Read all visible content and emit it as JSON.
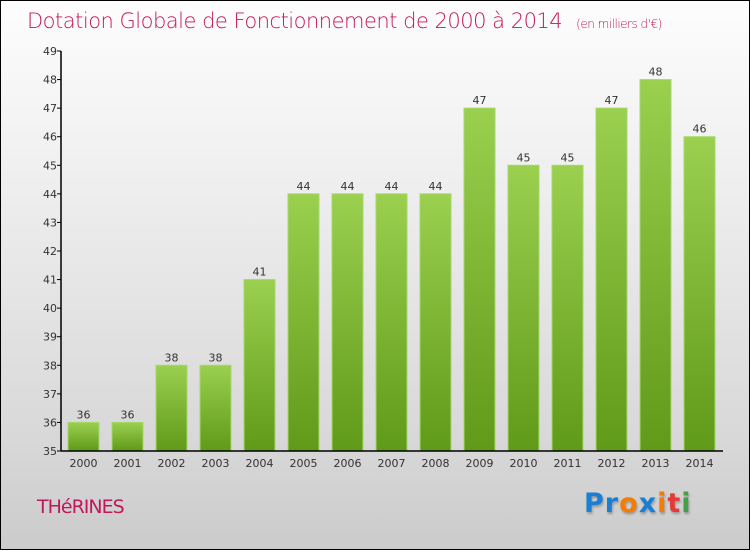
{
  "chart_data": {
    "type": "bar",
    "title": "Dotation Globale de Fonctionnement de 2000 à 2014",
    "subtitle": "(en milliers d'€)",
    "categories": [
      "2000",
      "2001",
      "2002",
      "2003",
      "2004",
      "2005",
      "2006",
      "2007",
      "2008",
      "2009",
      "2010",
      "2011",
      "2012",
      "2013",
      "2014"
    ],
    "values": [
      36,
      36,
      38,
      38,
      41,
      44,
      44,
      44,
      44,
      47,
      45,
      45,
      47,
      48,
      46
    ],
    "ylim": [
      35,
      49
    ],
    "yticks": [
      35,
      36,
      37,
      38,
      39,
      40,
      41,
      42,
      43,
      44,
      45,
      46,
      47,
      48,
      49
    ],
    "xlabel": "",
    "ylabel": "",
    "bar_color": "#7cb82f",
    "grid": false
  },
  "commune": "THéRINES",
  "logo": {
    "text": "Proxiti",
    "letters": [
      {
        "c": "P",
        "color": "#1a7fd4"
      },
      {
        "c": "r",
        "color": "#1a7fd4"
      },
      {
        "c": "o",
        "color": "#f57c00"
      },
      {
        "c": "x",
        "color": "#1a7fd4"
      },
      {
        "c": "i",
        "color": "#f57c00"
      },
      {
        "c": "t",
        "color": "#e53935"
      },
      {
        "c": "i",
        "color": "#43a047"
      }
    ]
  }
}
